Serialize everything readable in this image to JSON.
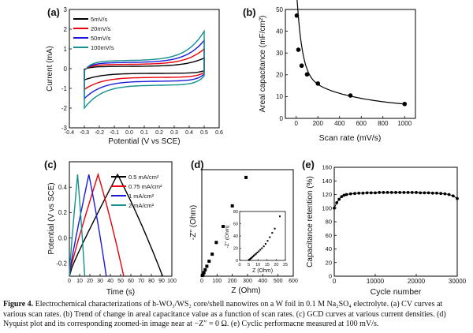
{
  "chart_data": [
    {
      "id": "a",
      "panel_label": "(a)",
      "type": "line",
      "xlabel": "Potential (V vs SCE)",
      "ylabel": "Current (mA)",
      "xlim": [
        -0.4,
        0.6
      ],
      "ylim": [
        -3,
        3
      ],
      "xticks": [
        "-0.4",
        "-0.3",
        "-0.2",
        "-0.1",
        "0.0",
        "0.1",
        "0.2",
        "0.3",
        "0.4",
        "0.5",
        "0.6"
      ],
      "yticks": [
        "-3",
        "-2",
        "-1",
        "0",
        "1",
        "2",
        "3"
      ],
      "legend": "top-left",
      "series": [
        {
          "name": "5mV/s",
          "color": "#000000",
          "amp": 0.42
        },
        {
          "name": "20mV/s",
          "color": "#e8000b",
          "amp": 0.78
        },
        {
          "name": "50mV/s",
          "color": "#1a1adb",
          "amp": 1.12
        },
        {
          "name": "100mV/s",
          "color": "#14918c",
          "amp": 1.48
        }
      ]
    },
    {
      "id": "b",
      "panel_label": "(b)",
      "type": "line",
      "xlabel": "Scan rate (mV/s)",
      "ylabel": "Areal capacitance (mF/cm²)",
      "xlim": [
        -100,
        1100
      ],
      "ylim": [
        0,
        50
      ],
      "xticks": [
        "0",
        "200",
        "400",
        "600",
        "800",
        "1000"
      ],
      "yticks": [
        "0",
        "10",
        "20",
        "30",
        "40",
        "50"
      ],
      "x": [
        5,
        20,
        50,
        100,
        200,
        500,
        1000
      ],
      "y": [
        47.2,
        31.5,
        24.2,
        20.2,
        16.0,
        10.5,
        6.6
      ]
    },
    {
      "id": "c",
      "panel_label": "(c)",
      "type": "line",
      "xlabel": "Time (s)",
      "ylabel": "Potential (V vs SCE)",
      "xlim": [
        0,
        100
      ],
      "ylim": [
        -0.3,
        0.6
      ],
      "xticks": [
        "0",
        "10",
        "20",
        "30",
        "40",
        "50",
        "60",
        "70",
        "80",
        "90",
        "100"
      ],
      "yticks": [
        "-0.2",
        "0.0",
        "0.2",
        "0.4"
      ],
      "legend": "top-right",
      "series": [
        {
          "name": "0.5 mA/cm²",
          "color": "#000000",
          "x": [
            0,
            47,
            91
          ],
          "y": [
            -0.3,
            0.5,
            -0.3
          ]
        },
        {
          "name": "0.75 mA/cm²",
          "color": "#e8000b",
          "x": [
            0,
            28,
            53
          ],
          "y": [
            -0.3,
            0.5,
            -0.3
          ]
        },
        {
          "name": "1 mA/cm²",
          "color": "#1a1adb",
          "x": [
            0,
            19,
            36
          ],
          "y": [
            -0.3,
            0.5,
            -0.3
          ]
        },
        {
          "name": "2 mA/cm²",
          "color": "#14918c",
          "x": [
            0,
            8,
            15
          ],
          "y": [
            -0.3,
            0.5,
            -0.3
          ]
        }
      ]
    },
    {
      "id": "d",
      "panel_label": "(d)",
      "type": "scatter",
      "xlabel": "Z (Ohm)",
      "ylabel": "-Z'' (Ohm)",
      "xlim": [
        0,
        600
      ],
      "ylim": [
        0,
        300
      ],
      "xticks": [
        "0",
        "100",
        "200",
        "300",
        "400",
        "500",
        "600"
      ],
      "x": [
        3,
        8,
        14,
        22,
        33,
        48,
        68,
        95,
        140,
        200,
        290
      ],
      "y": [
        2,
        5,
        10,
        18,
        28,
        42,
        62,
        95,
        140,
        198,
        278
      ],
      "inset": {
        "xlabel": "Z (Ohm)",
        "ylabel": "-Z'' (Ohm)",
        "xlim": [
          0,
          25
        ],
        "ylim": [
          0,
          80
        ],
        "xticks": [
          "0",
          "5",
          "10",
          "15",
          "20",
          "25"
        ],
        "yticks": [
          "0",
          "20",
          "40",
          "60",
          "80"
        ],
        "x": [
          5.0,
          5.3,
          5.6,
          6.0,
          6.4,
          6.8,
          7.3,
          7.8,
          8.4,
          9.0,
          9.7,
          10.5,
          11.3,
          12.2,
          13.2,
          14.2,
          15.3,
          16.5,
          17.8,
          19.2,
          22.0
        ],
        "y": [
          0.5,
          1.0,
          2.0,
          3.0,
          4.0,
          5.0,
          6.5,
          8.0,
          9.5,
          11.0,
          13.0,
          15.0,
          17.5,
          20.0,
          23.0,
          27.0,
          32.0,
          38.0,
          45.0,
          52.0,
          72.0
        ]
      }
    },
    {
      "id": "e",
      "panel_label": "(e)",
      "type": "line",
      "xlabel": "Cycle number",
      "ylabel": "Capacitance retention (%)",
      "xlim": [
        0,
        30000
      ],
      "ylim": [
        0,
        160
      ],
      "xticks": [
        "0",
        "10000",
        "20000",
        "30000"
      ],
      "yticks": [
        "0",
        "20",
        "40",
        "60",
        "80",
        "100",
        "120",
        "140",
        "160"
      ],
      "x": [
        0,
        600,
        1200,
        1800,
        2400,
        3000,
        4000,
        5000,
        6000,
        7000,
        8000,
        9000,
        10000,
        11000,
        12000,
        13000,
        14000,
        15000,
        16000,
        17000,
        18000,
        19000,
        20000,
        21000,
        22000,
        23000,
        24000,
        25000,
        26000,
        27000,
        28000,
        29000,
        30000
      ],
      "y": [
        100,
        108,
        113,
        117,
        119,
        120,
        121,
        121.5,
        122,
        122,
        122.5,
        122.5,
        122.5,
        123,
        123,
        123,
        123,
        123,
        123,
        123,
        123,
        123,
        123,
        122.5,
        122.5,
        122.5,
        122,
        122,
        121.5,
        121,
        120,
        118,
        114
      ]
    }
  ],
  "caption": {
    "label": "Figure 4.",
    "line1": "Electrochemical characterizations of h-WO₃/WS₂ core/shell nanowires on a W foil in 0.1 M Na₂SO₄ electrolyte. (a) CV curves at",
    "line2": "various scan rates. (b) Trend of change in areal capacitance value as a function of scan rates. (c) GCD curves at various current densities. (d)",
    "line3": "Nyquist plot and its corresponding zoomed-in image near at −Z″ = 0 Ω. (e) Cyclic performacne measured at 100 mV/s."
  }
}
